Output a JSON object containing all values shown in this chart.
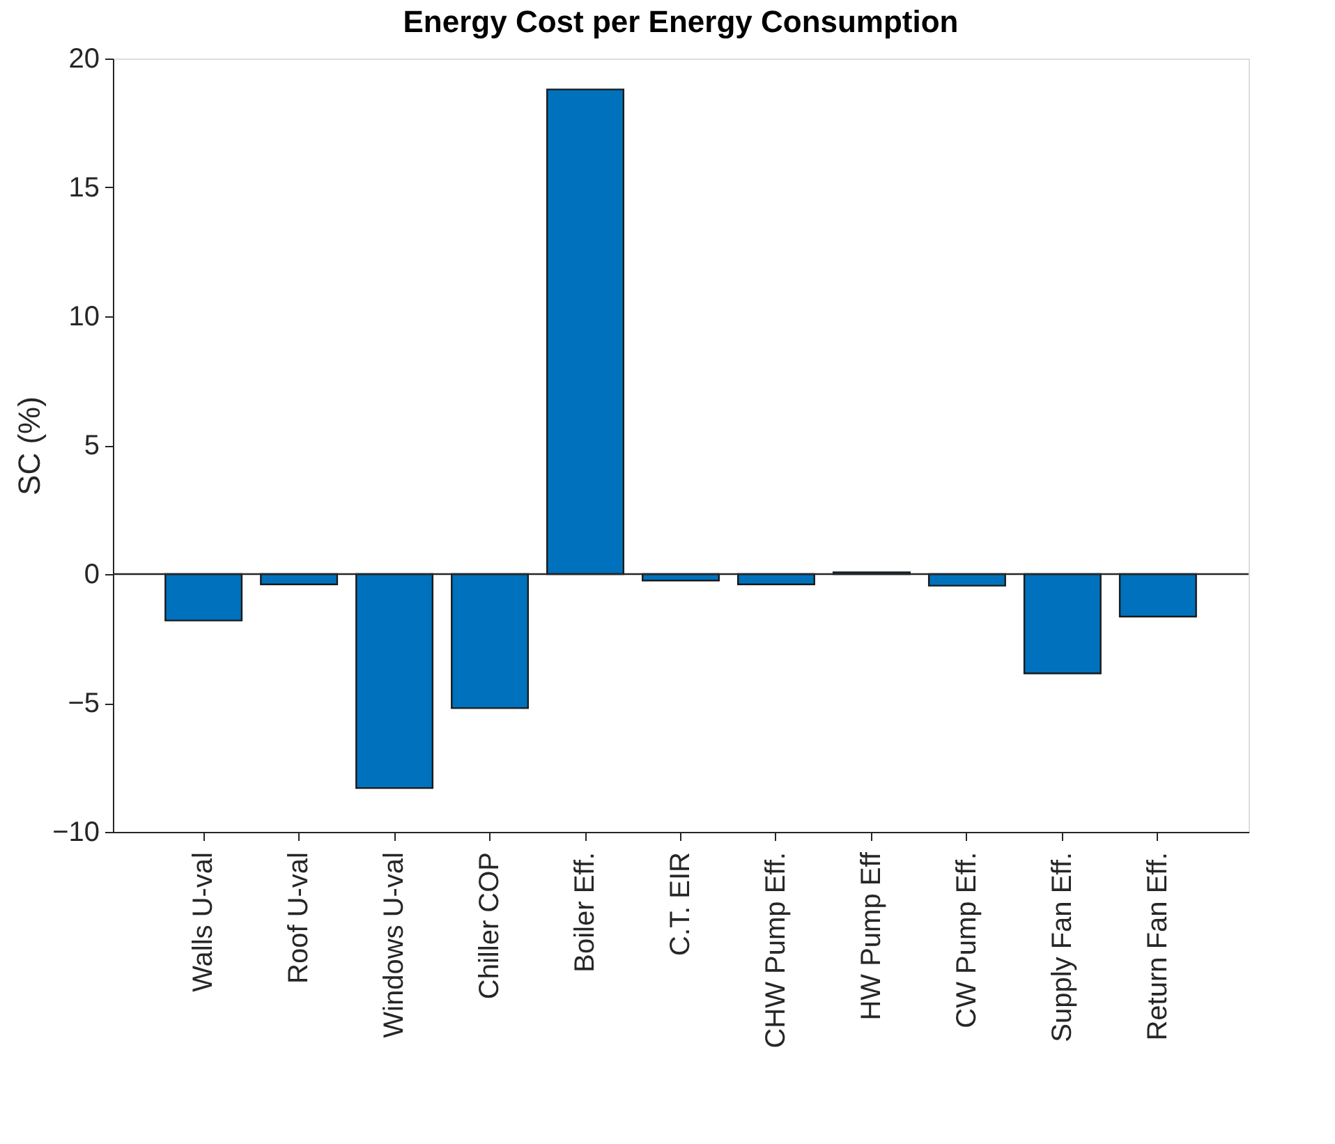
{
  "chart_data": {
    "type": "bar",
    "title": "Energy Cost per Energy Consumption",
    "ylabel": "SC (%)",
    "categories": [
      "Walls U-val",
      "Roof U-val",
      "Windows U-val",
      "Chiller COP",
      "Boiler Eff.",
      "C.T. EIR",
      "CHW Pump Eff.",
      "HW Pump Eff",
      "CW Pump Eff.",
      "Supply Fan Eff.",
      "Return Fan Eff."
    ],
    "values": [
      -1.8,
      -0.4,
      -8.3,
      -5.2,
      18.8,
      -0.25,
      -0.4,
      0.07,
      -0.45,
      -3.85,
      -1.65
    ],
    "color": "#0072bd",
    "ylim": [
      -10,
      20
    ],
    "yticks": [
      -10,
      -5,
      0,
      5,
      10,
      15,
      20
    ],
    "ref_lines": [
      {
        "axis": "y",
        "value": 0
      }
    ],
    "grid": false
  }
}
